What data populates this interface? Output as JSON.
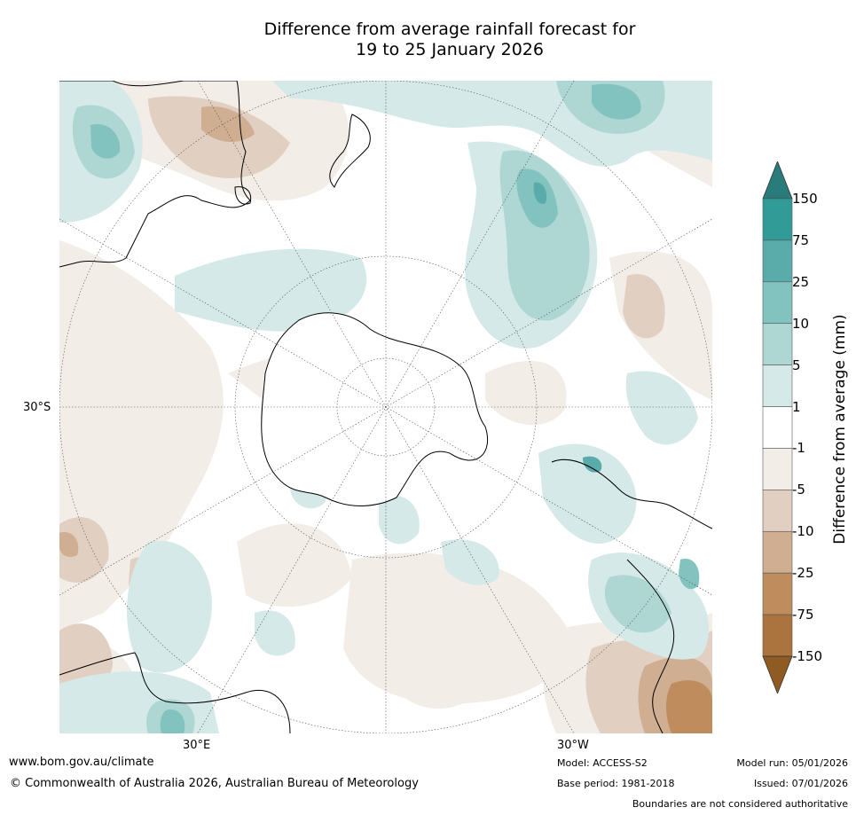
{
  "title": {
    "line1": "Difference from average rainfall forecast for",
    "line2": "19 to 25 January 2026"
  },
  "map": {
    "projection": "south-polar-stereographic",
    "lat_label": "30°S",
    "lon_label_left": "30°E",
    "lon_label_right": "30°W"
  },
  "colorbar": {
    "title": "Difference from average (mm)",
    "ticks": [
      "150",
      "75",
      "25",
      "10",
      "5",
      "1",
      "-1",
      "-5",
      "-10",
      "-25",
      "-75",
      "-150"
    ],
    "bins": [
      {
        "label": "> 150",
        "color": "#2a7b7b"
      },
      {
        "label": "75 to 150",
        "color": "#319b98"
      },
      {
        "label": "25 to 75",
        "color": "#5aacaa"
      },
      {
        "label": "10 to 25",
        "color": "#83c3bf"
      },
      {
        "label": "5 to 10",
        "color": "#aed7d4"
      },
      {
        "label": "1 to 5",
        "color": "#d4e9e8"
      },
      {
        "label": "-1 to 1",
        "color": "#ffffff"
      },
      {
        "label": "-5 to -1",
        "color": "#f3ede8"
      },
      {
        "label": "-10 to -5",
        "color": "#e1d0c1"
      },
      {
        "label": "-25 to -10",
        "color": "#cfae91"
      },
      {
        "label": "-75 to -25",
        "color": "#bf8c5e"
      },
      {
        "label": "-150 to -75",
        "color": "#ab733d"
      },
      {
        "label": "< -150",
        "color": "#8f5b22"
      }
    ]
  },
  "footer": {
    "website": "www.bom.gov.au/climate",
    "copyright": "© Commonwealth of Australia 2026, Australian Bureau of Meteorology",
    "model": "Model: ACCESS-S2",
    "base_period": "Base period: 1981-2018",
    "model_run": "Model run: 05/01/2026",
    "issued": "Issued: 07/01/2026",
    "disclaimer": "Boundaries are not considered authoritative"
  }
}
